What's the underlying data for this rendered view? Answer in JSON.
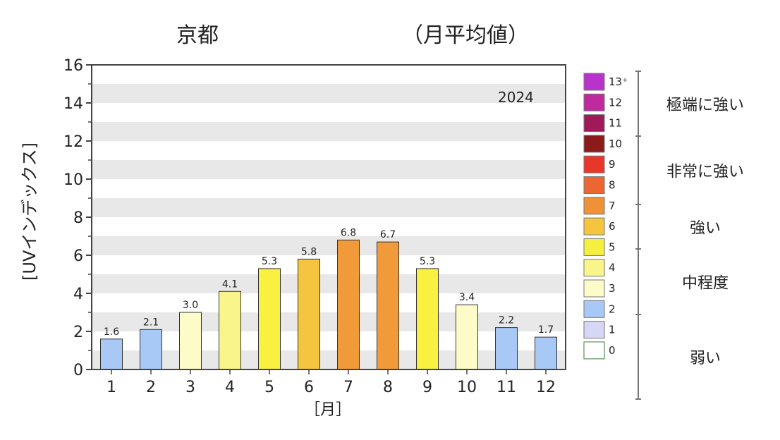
{
  "chart_data": {
    "type": "bar",
    "title_left": "京都",
    "title_right": "（月平均値）",
    "year_label": "2024",
    "xlabel": "［月］",
    "ylabel": "[UVインデックス]",
    "ylim": [
      0,
      16
    ],
    "yticks": [
      "0",
      "2",
      "4",
      "6",
      "8",
      "10",
      "12",
      "14",
      "16"
    ],
    "categories": [
      "1",
      "2",
      "3",
      "4",
      "5",
      "6",
      "7",
      "8",
      "9",
      "10",
      "11",
      "12"
    ],
    "values": [
      1.6,
      2.1,
      3.0,
      4.1,
      5.3,
      5.8,
      6.8,
      6.7,
      5.3,
      3.4,
      2.2,
      1.7
    ],
    "value_labels": [
      "1.6",
      "2.1",
      "3.0",
      "4.1",
      "5.3",
      "5.8",
      "6.8",
      "6.7",
      "5.3",
      "3.4",
      "2.2",
      "1.7"
    ],
    "bar_colors": [
      "#a8c8f5",
      "#a8c8f5",
      "#fdfbc8",
      "#faf58a",
      "#faf040",
      "#f5c540",
      "#f09a3a",
      "#f09a3a",
      "#faf040",
      "#fdfbc8",
      "#a8c8f5",
      "#a8c8f5"
    ],
    "grid": "horizontal bands",
    "legend": {
      "placement": "right",
      "scale": [
        {
          "label": "13⁺",
          "color": "#b833cc"
        },
        {
          "label": "12",
          "color": "#bf2a9e"
        },
        {
          "label": "11",
          "color": "#a01a5a"
        },
        {
          "label": "10",
          "color": "#8b1a1a"
        },
        {
          "label": "9",
          "color": "#e8362a"
        },
        {
          "label": "8",
          "color": "#ec6632"
        },
        {
          "label": "7",
          "color": "#f0913a"
        },
        {
          "label": "6",
          "color": "#f5c540"
        },
        {
          "label": "5",
          "color": "#f5f040"
        },
        {
          "label": "4",
          "color": "#f9f58a"
        },
        {
          "label": "3",
          "color": "#fdfbc8"
        },
        {
          "label": "2",
          "color": "#a8c8f5"
        },
        {
          "label": "1",
          "color": "#d8d6f5"
        },
        {
          "label": "0",
          "color": "#ffffff"
        }
      ],
      "categories": [
        "極端に強い",
        "非常に強い",
        "強い",
        "中程度",
        "弱い"
      ]
    }
  }
}
